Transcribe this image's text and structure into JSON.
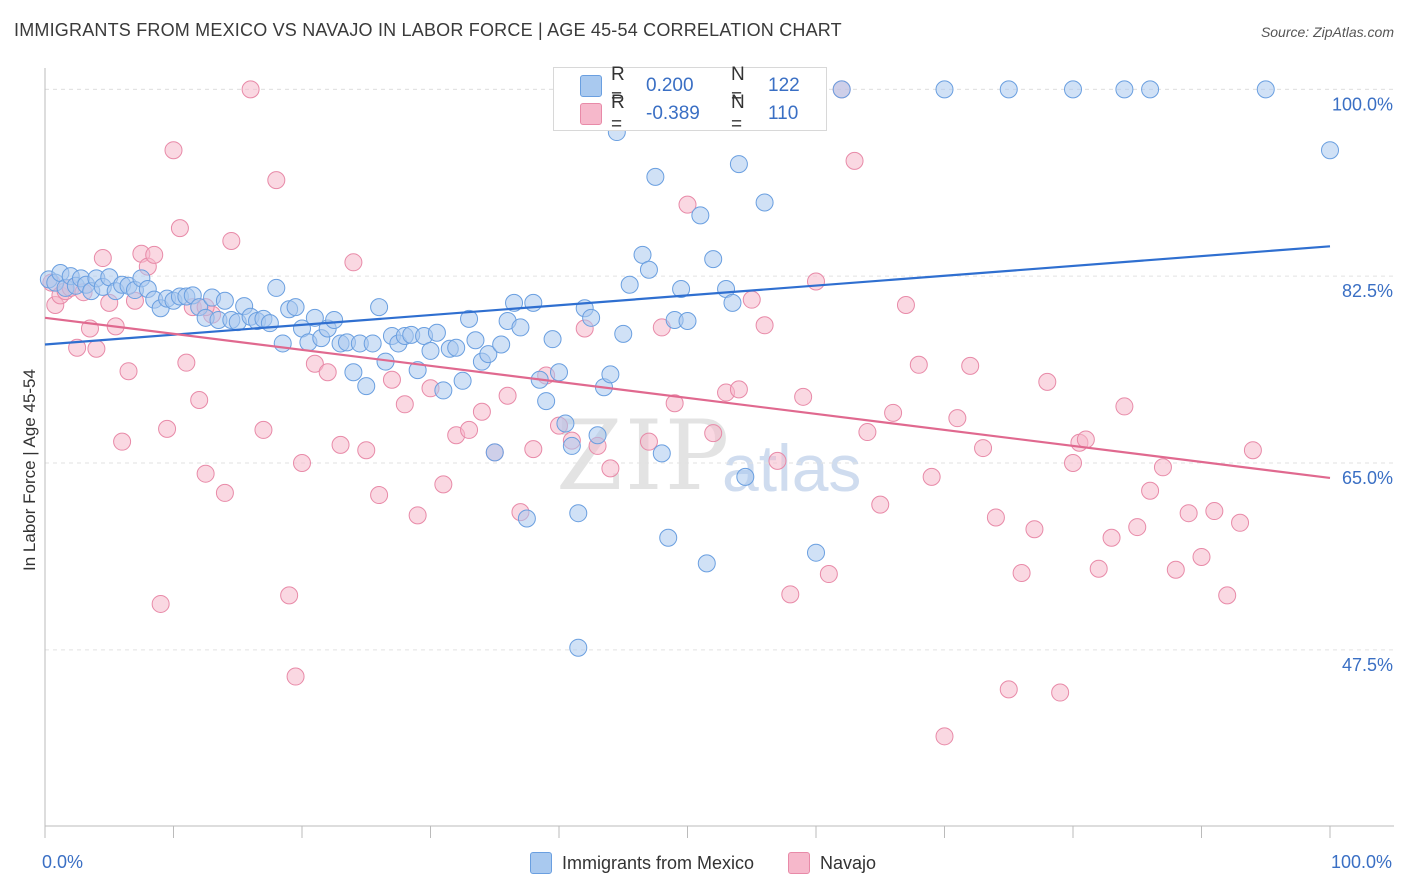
{
  "title": "IMMIGRANTS FROM MEXICO VS NAVAJO IN LABOR FORCE | AGE 45-54 CORRELATION CHART",
  "source": "Source: ZipAtlas.com",
  "watermark": {
    "zip": "ZIP",
    "atlas": "atlas"
  },
  "stats": {
    "rows": [
      {
        "r_label": "R =",
        "r_value": "0.200",
        "n_label": "N =",
        "n_value": "122",
        "color": "#a9c9ef"
      },
      {
        "r_label": "R =",
        "r_value": "-0.389",
        "n_label": "N =",
        "n_value": "110",
        "color": "#f6b8cb"
      }
    ]
  },
  "x_axis": {
    "left_label": "0.0%",
    "right_label": "100.0%"
  },
  "legend": [
    {
      "label": "Immigrants from Mexico",
      "color": "#a9c9ef"
    },
    {
      "label": "Navajo",
      "color": "#f6b8cb"
    }
  ],
  "chart_data": {
    "type": "scatter",
    "xlabel": "",
    "ylabel": "In Labor Force | Age 45-54",
    "xlim": [
      0,
      100
    ],
    "ylim": [
      31,
      102
    ],
    "y_ticks": [
      47.5,
      65.0,
      82.5,
      100.0
    ],
    "y_tick_labels": [
      "47.5%",
      "65.0%",
      "82.5%",
      "100.0%"
    ],
    "grid": "horizontal dashed",
    "legend_position": "bottom",
    "series": [
      {
        "name": "Immigrants from Mexico",
        "color": "#6a9fe0",
        "fill": "#a9c9ef",
        "trend": {
          "x": [
            0,
            100
          ],
          "y": [
            76.1,
            85.3
          ],
          "color": "#2f6fd0"
        },
        "points": [
          [
            0.3,
            82.2
          ],
          [
            0.8,
            81.9
          ],
          [
            1.2,
            82.8
          ],
          [
            1.6,
            81.4
          ],
          [
            2,
            82.5
          ],
          [
            2.4,
            81.6
          ],
          [
            2.8,
            82.3
          ],
          [
            3.2,
            81.7
          ],
          [
            3.6,
            81.1
          ],
          [
            4,
            82.3
          ],
          [
            4.5,
            81.5
          ],
          [
            5,
            82.4
          ],
          [
            5.5,
            81.1
          ],
          [
            6,
            81.7
          ],
          [
            6.5,
            81.6
          ],
          [
            7,
            81.2
          ],
          [
            7.5,
            82.3
          ],
          [
            8,
            81.3
          ],
          [
            8.5,
            80.3
          ],
          [
            9,
            79.5
          ],
          [
            9.5,
            80.4
          ],
          [
            10,
            80.2
          ],
          [
            10.5,
            80.6
          ],
          [
            11,
            80.6
          ],
          [
            11.5,
            80.7
          ],
          [
            12,
            79.6
          ],
          [
            12.5,
            78.6
          ],
          [
            13,
            80.5
          ],
          [
            13.5,
            78.4
          ],
          [
            14,
            80.2
          ],
          [
            14.5,
            78.4
          ],
          [
            15,
            78.2
          ],
          [
            15.5,
            79.7
          ],
          [
            16,
            78.7
          ],
          [
            16.5,
            78.3
          ],
          [
            17,
            78.5
          ],
          [
            17.5,
            78.1
          ],
          [
            18,
            81.4
          ],
          [
            18.5,
            76.2
          ],
          [
            19,
            79.4
          ],
          [
            19.5,
            79.6
          ],
          [
            20,
            77.6
          ],
          [
            20.5,
            76.3
          ],
          [
            21,
            78.6
          ],
          [
            21.5,
            76.7
          ],
          [
            22,
            77.6
          ],
          [
            22.5,
            78.4
          ],
          [
            23,
            76.2
          ],
          [
            23.5,
            76.3
          ],
          [
            24,
            73.5
          ],
          [
            24.5,
            76.2
          ],
          [
            25,
            72.2
          ],
          [
            25.5,
            76.2
          ],
          [
            26,
            79.6
          ],
          [
            26.5,
            74.5
          ],
          [
            27,
            76.9
          ],
          [
            27.5,
            76.2
          ],
          [
            28,
            76.9
          ],
          [
            28.5,
            77.0
          ],
          [
            29,
            73.7
          ],
          [
            29.5,
            76.9
          ],
          [
            30,
            75.5
          ],
          [
            30.5,
            77.2
          ],
          [
            31,
            71.8
          ],
          [
            31.5,
            75.7
          ],
          [
            32,
            75.8
          ],
          [
            32.5,
            72.7
          ],
          [
            33,
            78.5
          ],
          [
            33.5,
            76.5
          ],
          [
            34,
            74.5
          ],
          [
            34.5,
            75.2
          ],
          [
            35,
            66.0
          ],
          [
            35.5,
            76.1
          ],
          [
            36,
            78.3
          ],
          [
            36.5,
            80.0
          ],
          [
            37,
            77.7
          ],
          [
            37.5,
            59.8
          ],
          [
            38,
            80.0
          ],
          [
            38.5,
            72.8
          ],
          [
            39,
            70.8
          ],
          [
            39.5,
            76.6
          ],
          [
            40,
            73.5
          ],
          [
            40.5,
            68.7
          ],
          [
            41,
            66.6
          ],
          [
            41.5,
            60.3
          ],
          [
            42,
            79.5
          ],
          [
            42.5,
            78.6
          ],
          [
            43,
            67.6
          ],
          [
            43.5,
            72.1
          ],
          [
            44,
            73.3
          ],
          [
            44.5,
            96.0
          ],
          [
            45,
            77.1
          ],
          [
            45.5,
            81.7
          ],
          [
            46,
            100
          ],
          [
            46.5,
            84.5
          ],
          [
            47,
            83.1
          ],
          [
            47.5,
            91.8
          ],
          [
            48,
            65.9
          ],
          [
            48.5,
            58.0
          ],
          [
            49,
            78.4
          ],
          [
            49.5,
            81.3
          ],
          [
            50,
            78.3
          ],
          [
            51,
            88.2
          ],
          [
            51.5,
            55.6
          ],
          [
            52,
            84.1
          ],
          [
            53,
            81.3
          ],
          [
            53.5,
            80.0
          ],
          [
            54,
            93.0
          ],
          [
            54.5,
            63.7
          ],
          [
            56,
            89.4
          ],
          [
            57,
            100
          ],
          [
            59,
            100
          ],
          [
            60,
            56.6
          ],
          [
            62,
            100
          ],
          [
            70,
            100
          ],
          [
            75,
            100
          ],
          [
            80,
            100
          ],
          [
            84,
            100
          ],
          [
            86,
            100
          ],
          [
            95,
            100
          ],
          [
            100,
            94.3
          ],
          [
            41.5,
            47.7
          ]
        ]
      },
      {
        "name": "Navajo",
        "color": "#e88aa8",
        "fill": "#f6b8cb",
        "trend": {
          "x": [
            0,
            100
          ],
          "y": [
            78.6,
            63.6
          ],
          "color": "#e0698f"
        },
        "points": [
          [
            0.5,
            81.9
          ],
          [
            0.8,
            79.8
          ],
          [
            1.2,
            80.7
          ],
          [
            1.6,
            81.1
          ],
          [
            2,
            81.4
          ],
          [
            2.5,
            75.8
          ],
          [
            3,
            81.0
          ],
          [
            3.5,
            77.6
          ],
          [
            4,
            75.7
          ],
          [
            4.5,
            84.2
          ],
          [
            5,
            80.0
          ],
          [
            5.5,
            77.8
          ],
          [
            6,
            67.0
          ],
          [
            6.5,
            73.6
          ],
          [
            7,
            80.2
          ],
          [
            7.5,
            84.6
          ],
          [
            8,
            83.4
          ],
          [
            8.5,
            84.5
          ],
          [
            9,
            51.8
          ],
          [
            9.5,
            68.2
          ],
          [
            10,
            94.3
          ],
          [
            10.5,
            87.0
          ],
          [
            11,
            74.4
          ],
          [
            11.5,
            79.6
          ],
          [
            12,
            70.9
          ],
          [
            12.5,
            64.0
          ],
          [
            13,
            78.9
          ],
          [
            14,
            62.2
          ],
          [
            14.5,
            85.8
          ],
          [
            16,
            100
          ],
          [
            17,
            68.1
          ],
          [
            18,
            91.5
          ],
          [
            19,
            52.6
          ],
          [
            19.5,
            45.0
          ],
          [
            20,
            65.0
          ],
          [
            21,
            74.3
          ],
          [
            22,
            73.5
          ],
          [
            23,
            66.7
          ],
          [
            24,
            83.8
          ],
          [
            25,
            66.2
          ],
          [
            26,
            62.0
          ],
          [
            27,
            72.8
          ],
          [
            28,
            70.5
          ],
          [
            29,
            60.1
          ],
          [
            30,
            72.0
          ],
          [
            31,
            63.0
          ],
          [
            32,
            67.6
          ],
          [
            33,
            68.1
          ],
          [
            34,
            69.8
          ],
          [
            35,
            66.0
          ],
          [
            36,
            71.3
          ],
          [
            37,
            60.4
          ],
          [
            38,
            66.3
          ],
          [
            39,
            73.2
          ],
          [
            40,
            68.5
          ],
          [
            41,
            67.1
          ],
          [
            42,
            77.6
          ],
          [
            43,
            66.6
          ],
          [
            44,
            64.5
          ],
          [
            46,
            100
          ],
          [
            47,
            67.0
          ],
          [
            48,
            77.7
          ],
          [
            49,
            70.6
          ],
          [
            50,
            89.2
          ],
          [
            51,
            100
          ],
          [
            52,
            67.8
          ],
          [
            53,
            71.6
          ],
          [
            54,
            71.9
          ],
          [
            55,
            80.3
          ],
          [
            56,
            77.9
          ],
          [
            57,
            65.2
          ],
          [
            58,
            52.7
          ],
          [
            59,
            71.2
          ],
          [
            60,
            82.0
          ],
          [
            61,
            54.6
          ],
          [
            62,
            100
          ],
          [
            63,
            93.3
          ],
          [
            64,
            67.9
          ],
          [
            65,
            61.1
          ],
          [
            66,
            69.7
          ],
          [
            67,
            79.8
          ],
          [
            68,
            74.2
          ],
          [
            69,
            63.7
          ],
          [
            70,
            39.4
          ],
          [
            71,
            69.2
          ],
          [
            72,
            74.1
          ],
          [
            73,
            66.4
          ],
          [
            74,
            59.9
          ],
          [
            75,
            43.8
          ],
          [
            76,
            54.7
          ],
          [
            77,
            58.8
          ],
          [
            78,
            72.6
          ],
          [
            79,
            43.5
          ],
          [
            80,
            65.0
          ],
          [
            80.5,
            66.9
          ],
          [
            81,
            67.2
          ],
          [
            82,
            55.1
          ],
          [
            83,
            58.0
          ],
          [
            84,
            70.3
          ],
          [
            85,
            59.0
          ],
          [
            86,
            62.4
          ],
          [
            87,
            64.6
          ],
          [
            88,
            55.0
          ],
          [
            89,
            60.3
          ],
          [
            90,
            56.2
          ],
          [
            91,
            60.5
          ],
          [
            92,
            52.6
          ],
          [
            93,
            59.4
          ],
          [
            94,
            66.2
          ],
          [
            12.5,
            79.6
          ]
        ]
      }
    ]
  }
}
